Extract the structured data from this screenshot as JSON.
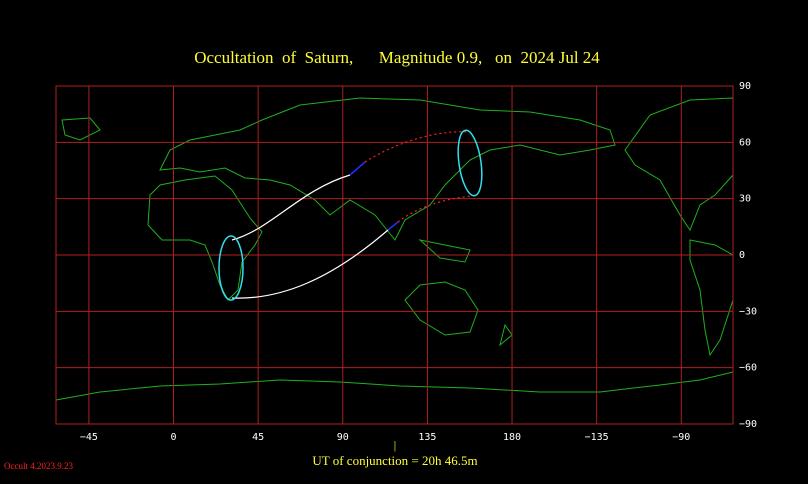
{
  "map": {
    "title": "Occultation  of  Saturn,      Magnitude 0.9,   on  2024 Jul 24",
    "xlim": [
      -62.5,
      297.5
    ],
    "ylim": [
      -90,
      90
    ],
    "xticks": [
      {
        "value": -45,
        "label": "−45"
      },
      0,
      45,
      90,
      135,
      180,
      {
        "value": -135,
        "label": "−135"
      },
      {
        "value": -90,
        "label": "−90"
      }
    ],
    "yticks": [
      90,
      60,
      30,
      0,
      {
        "value": -30,
        "label": "−30"
      },
      {
        "value": -60,
        "label": "−60"
      },
      {
        "value": -90,
        "label": "−90"
      }
    ],
    "conjunction_marker": "|",
    "conjunction": "UT of conjunction = 20h 46.5m",
    "footnote": "Occult 4.2023.9.23"
  }
}
